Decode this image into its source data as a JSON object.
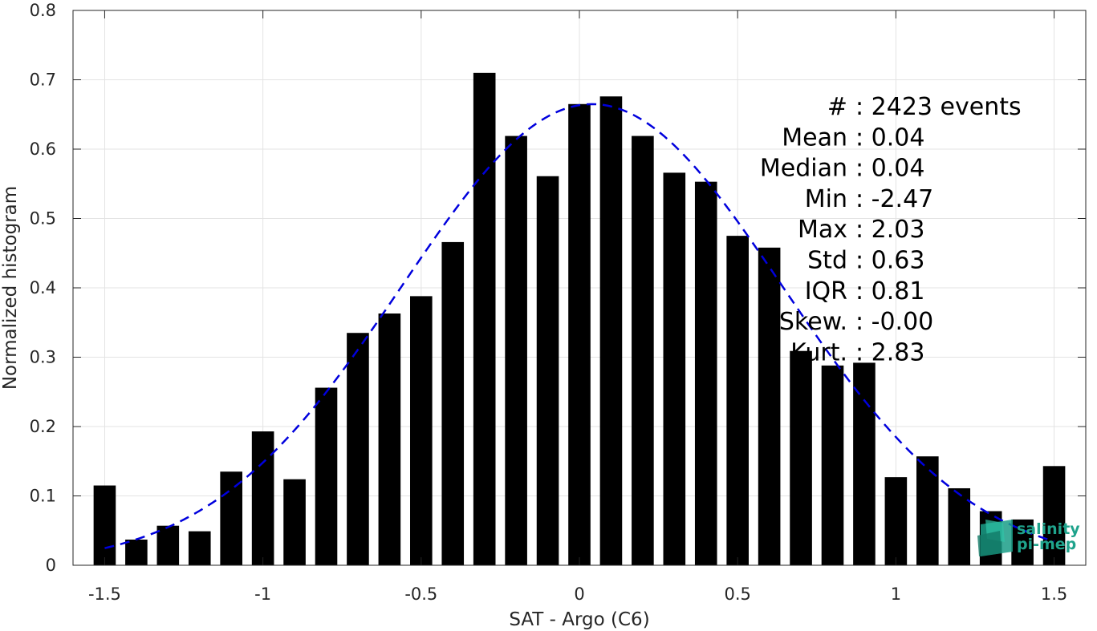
{
  "chart_data": {
    "type": "bar",
    "xlabel": "SAT - Argo (C6)",
    "ylabel": "Normalized histogram",
    "xlim": [
      -1.6,
      1.6
    ],
    "ylim": [
      0,
      0.8
    ],
    "x_ticks": [
      "-1.5",
      "-1",
      "-0.5",
      "0",
      "0.5",
      "1",
      "1.5"
    ],
    "y_ticks": [
      "0",
      "0.1",
      "0.2",
      "0.3",
      "0.4",
      "0.5",
      "0.6",
      "0.7",
      "0.8"
    ],
    "grid": true,
    "bar_color": "#000000",
    "bins": [
      {
        "x": -1.5,
        "y": 0.115
      },
      {
        "x": -1.4,
        "y": 0.037
      },
      {
        "x": -1.3,
        "y": 0.057
      },
      {
        "x": -1.2,
        "y": 0.049
      },
      {
        "x": -1.1,
        "y": 0.135
      },
      {
        "x": -1.0,
        "y": 0.193
      },
      {
        "x": -0.9,
        "y": 0.124
      },
      {
        "x": -0.8,
        "y": 0.256
      },
      {
        "x": -0.7,
        "y": 0.335
      },
      {
        "x": -0.6,
        "y": 0.363
      },
      {
        "x": -0.5,
        "y": 0.388
      },
      {
        "x": -0.4,
        "y": 0.466
      },
      {
        "x": -0.3,
        "y": 0.71
      },
      {
        "x": -0.2,
        "y": 0.619
      },
      {
        "x": -0.1,
        "y": 0.561
      },
      {
        "x": 0.0,
        "y": 0.665
      },
      {
        "x": 0.1,
        "y": 0.676
      },
      {
        "x": 0.2,
        "y": 0.619
      },
      {
        "x": 0.3,
        "y": 0.566
      },
      {
        "x": 0.4,
        "y": 0.553
      },
      {
        "x": 0.5,
        "y": 0.475
      },
      {
        "x": 0.6,
        "y": 0.458
      },
      {
        "x": 0.7,
        "y": 0.309
      },
      {
        "x": 0.8,
        "y": 0.288
      },
      {
        "x": 0.9,
        "y": 0.292
      },
      {
        "x": 1.0,
        "y": 0.127
      },
      {
        "x": 1.1,
        "y": 0.157
      },
      {
        "x": 1.2,
        "y": 0.111
      },
      {
        "x": 1.3,
        "y": 0.078
      },
      {
        "x": 1.4,
        "y": 0.066
      },
      {
        "x": 1.5,
        "y": 0.143
      }
    ],
    "fit_curve": {
      "style": "dashed",
      "color": "#0000dd",
      "mean": 0.04,
      "std": 0.6,
      "x_range": [
        -1.5,
        1.5
      ]
    },
    "annotations": [
      {
        "label": "#",
        "value": ": 2423 events"
      },
      {
        "label": "Mean",
        "value": ": 0.04"
      },
      {
        "label": "Median",
        "value": ": 0.04"
      },
      {
        "label": "Min",
        "value": ": -2.47"
      },
      {
        "label": "Max",
        "value": ": 2.03"
      },
      {
        "label": "Std",
        "value": ": 0.63"
      },
      {
        "label": "IQR",
        "value": ": 0.81"
      },
      {
        "label": "Skew.",
        "value": ": -0.00"
      },
      {
        "label": "Kurt.",
        "value": ": 2.83"
      }
    ]
  },
  "logo": {
    "line1": "salinity",
    "line2": "pi-mep",
    "color": "#1fa38c"
  }
}
